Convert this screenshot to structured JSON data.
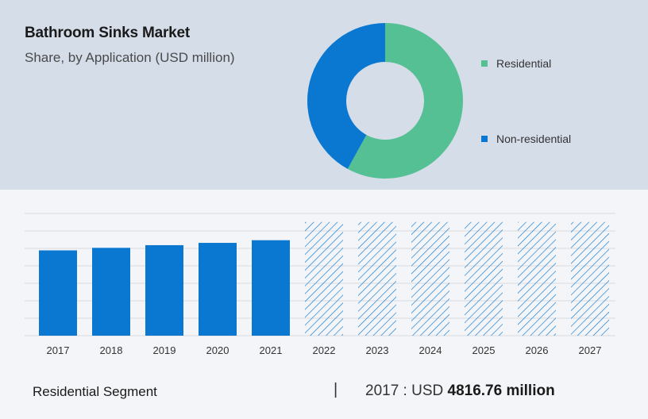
{
  "header": {
    "title": "Bathroom Sinks Market",
    "subtitle": "Share, by Application (USD million)"
  },
  "colors": {
    "residential": "#55c094",
    "non_residential": "#0a78d1",
    "bar": "#0a78d1",
    "grid": "#d8dbe0",
    "top_panel": "#d5dde9"
  },
  "chart_data": [
    {
      "type": "pie",
      "variant": "donut",
      "title": "Bathroom Sinks Market",
      "subtitle": "Share, by Application (USD million)",
      "categories": [
        "Residential",
        "Non-residential"
      ],
      "values": [
        58,
        42
      ],
      "legend": "right"
    },
    {
      "type": "bar",
      "categories": [
        "2017",
        "2018",
        "2019",
        "2020",
        "2021",
        "2022",
        "2023",
        "2024",
        "2025",
        "2026",
        "2027"
      ],
      "values": [
        4816.76,
        4960,
        5110,
        5240,
        5390,
        6420,
        6420,
        6420,
        6420,
        6420,
        6420
      ],
      "forecast_from": "2022",
      "forecast_style": "hatched",
      "ylim": [
        0,
        6900
      ],
      "grid": true,
      "y_tick_labels_shown": false
    }
  ],
  "footer": {
    "segment": "Residential Segment",
    "divider": "|",
    "year_label": "2017 : USD ",
    "amount": "4816.76 million"
  }
}
